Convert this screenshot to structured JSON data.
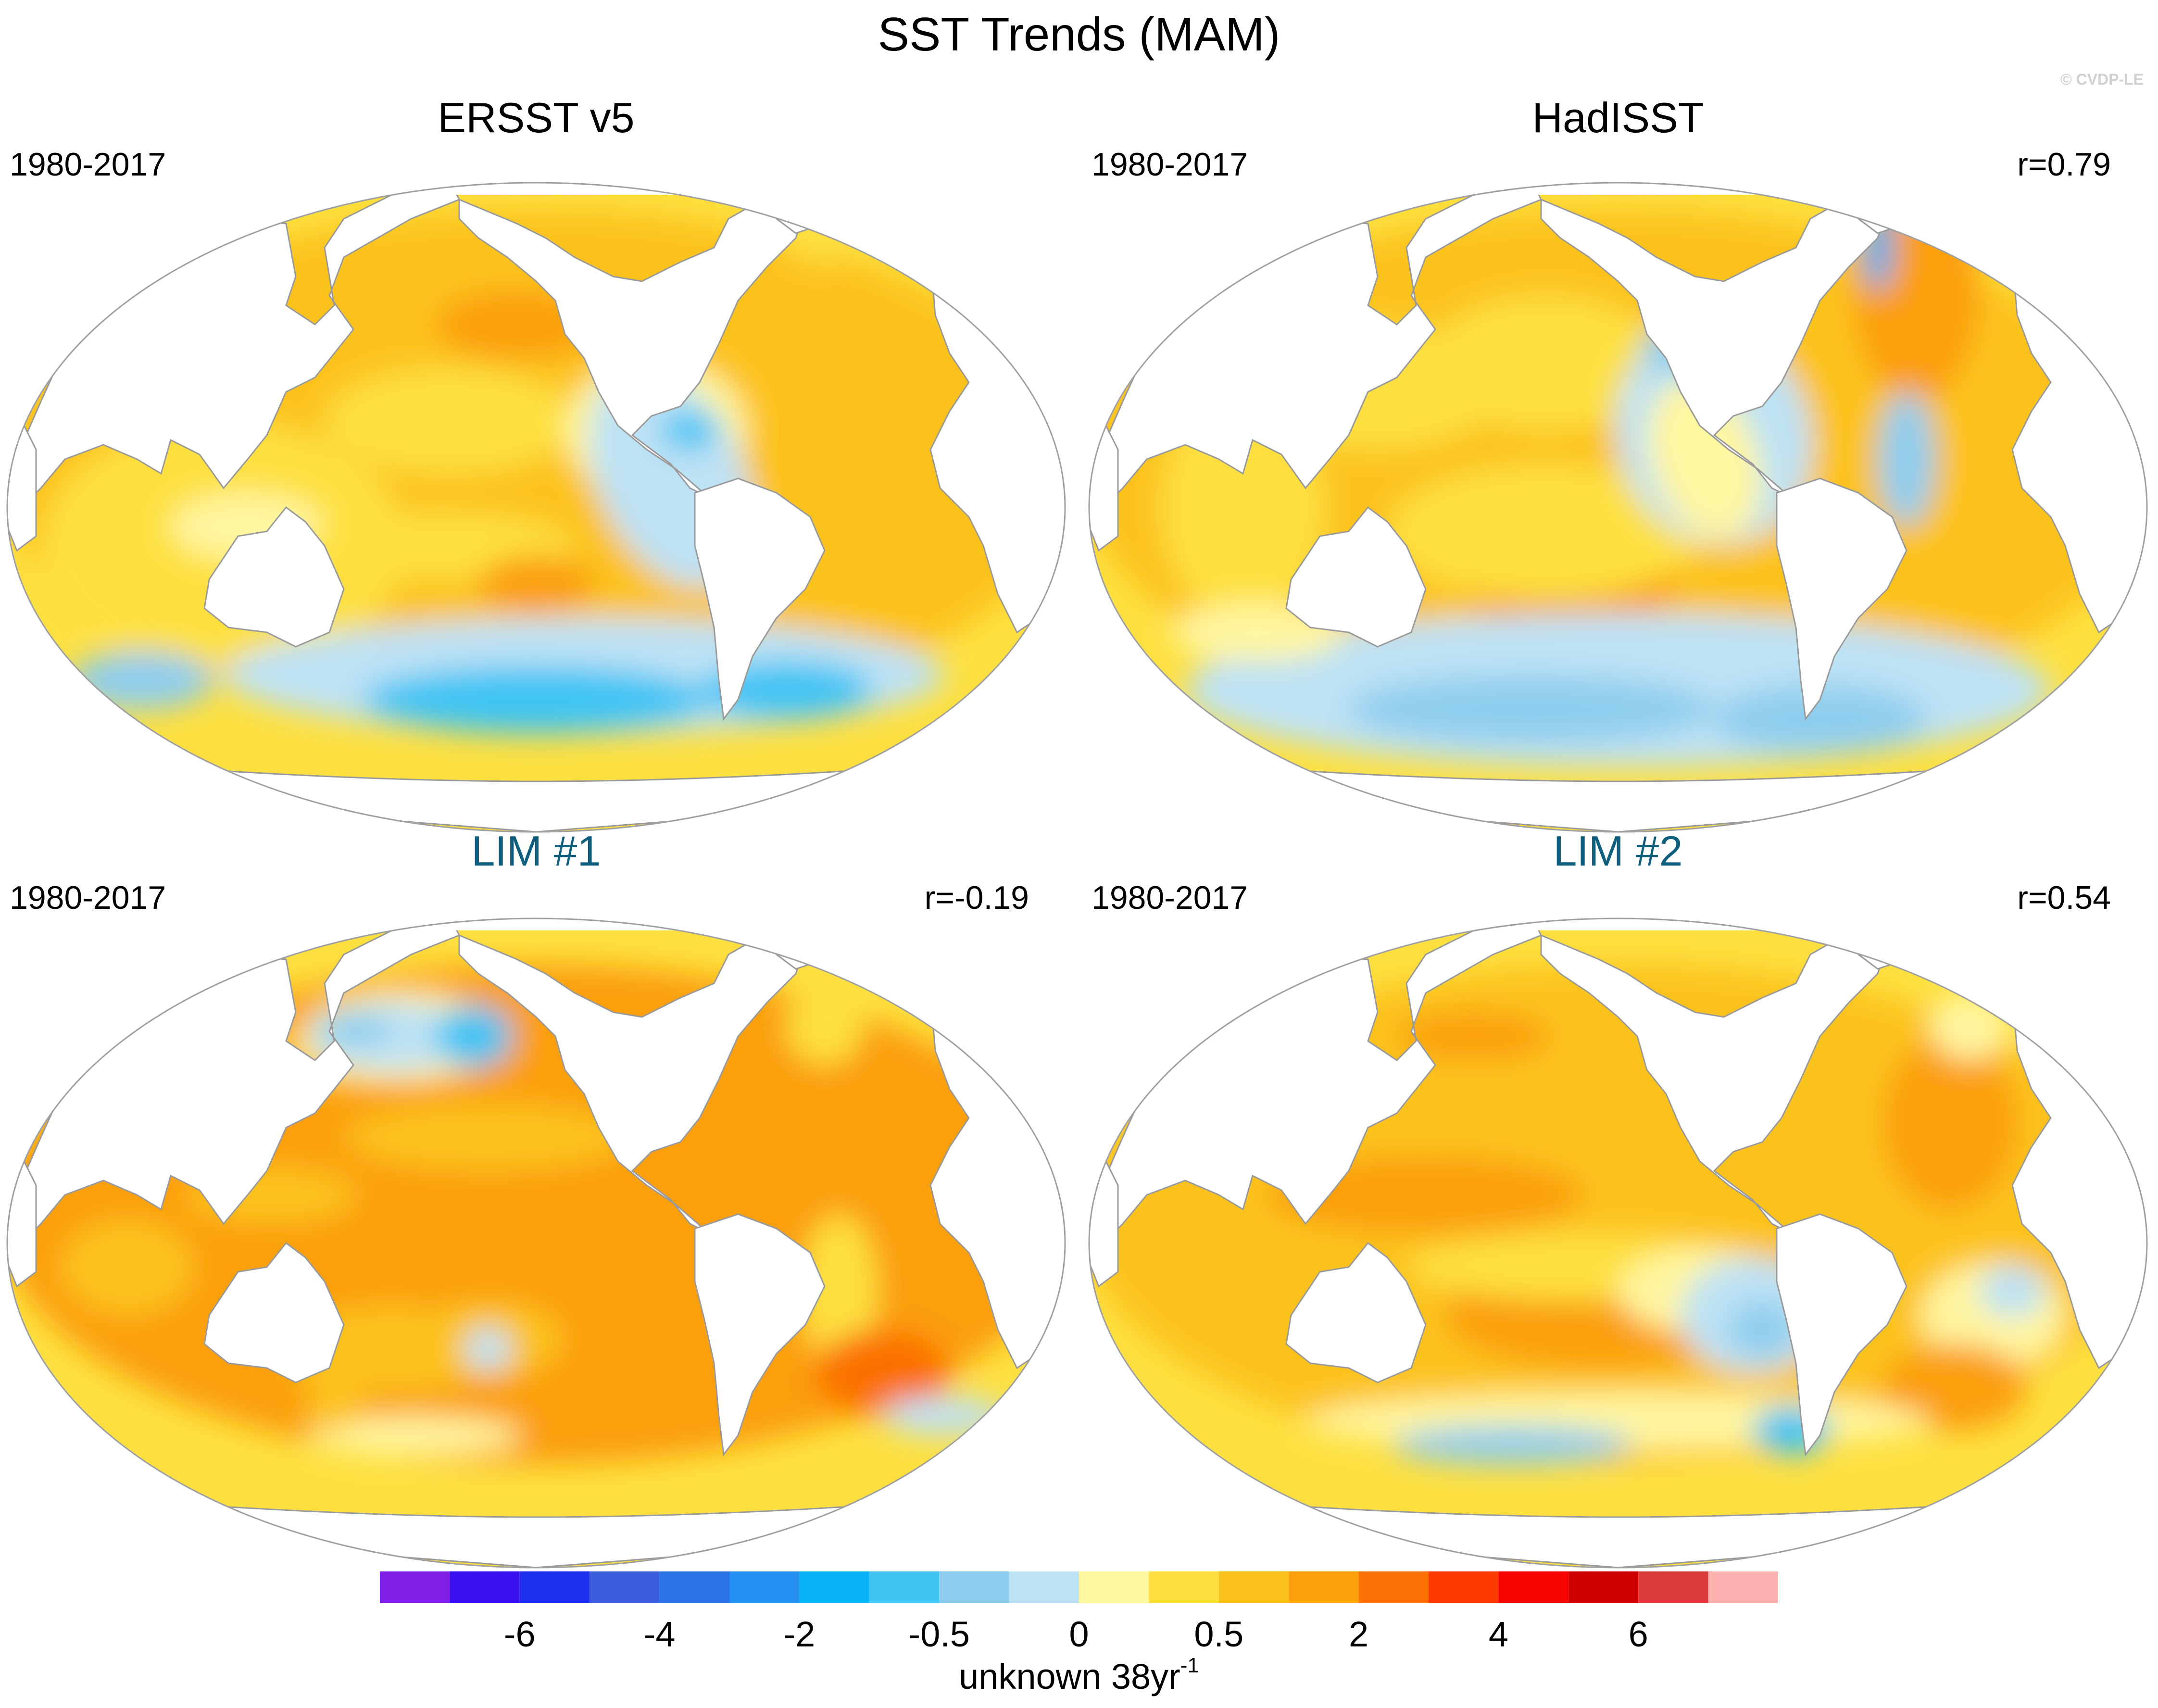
{
  "figure": {
    "title": "SST Trends (MAM)",
    "credit": "© CVDP-LE"
  },
  "panels": [
    {
      "title": "ERSST v5",
      "period": "1980-2017",
      "corr": "",
      "title_color": "#000000",
      "variant": 0
    },
    {
      "title": "HadISST",
      "period": "1980-2017",
      "corr": "r=0.79",
      "title_color": "#000000",
      "variant": 1
    },
    {
      "title": "LIM #1",
      "period": "1980-2017",
      "corr": "r=-0.19",
      "title_color": "#0e5f7e",
      "variant": 2
    },
    {
      "title": "LIM #2",
      "period": "1980-2017",
      "corr": "r=0.54",
      "title_color": "#0e5f7e",
      "variant": 3
    }
  ],
  "colorbar": {
    "colors": [
      "#7f1fe6",
      "#3a12f0",
      "#1e30ee",
      "#3b5de0",
      "#2c72e6",
      "#2491f2",
      "#08b0f4",
      "#40c4f4",
      "#8ecdee",
      "#bde2f4",
      "#fff6a0",
      "#fde040",
      "#fcc21c",
      "#fb9f0c",
      "#fb7104",
      "#fd3b00",
      "#f90500",
      "#cc0000",
      "#d93a3a",
      "#fdb2b2"
    ],
    "tick_labels": [
      "-6",
      "-4",
      "-2",
      "-0.5",
      "0",
      "0.5",
      "2",
      "4",
      "6"
    ],
    "tick_boundaries": [
      2,
      4,
      6,
      8,
      10,
      12,
      14,
      16,
      18
    ],
    "unit_text": "unknown 38yr",
    "unit_sup": "-1"
  }
}
